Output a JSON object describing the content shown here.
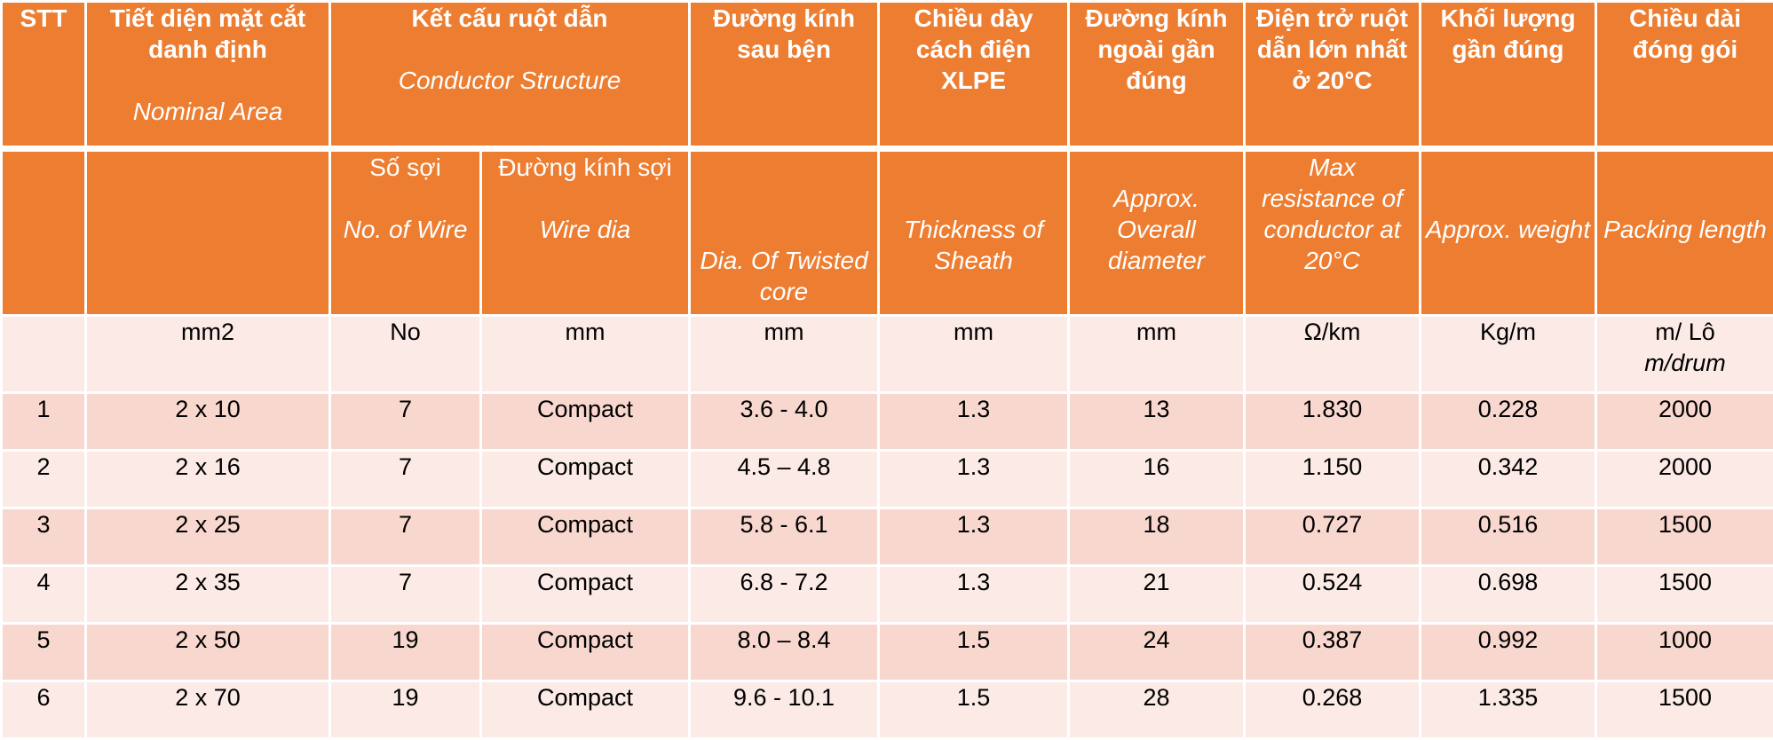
{
  "header": {
    "stt": "STT",
    "nominal_area_vi": "Tiết diện mặt cắt danh định",
    "nominal_area_en": "Nominal Area",
    "conductor_structure_vi": "Kết cấu ruột dẫn",
    "conductor_structure_en": "Conductor Structure",
    "twisted_dia_vi": "Đường kính sau bện",
    "sheath_vi": "Chiều dày cách điện XLPE",
    "overall_dia_vi": "Đường kính ngoài gần đúng",
    "resistance_vi": "Điện trở ruột dẫn lớn nhất ở 20°C",
    "weight_vi": "Khối lượng gần đúng",
    "packing_vi": "Chiều dài đóng gói"
  },
  "subheader": {
    "no_wire_vi": "Số sợi",
    "no_wire_en": "No. of Wire",
    "wire_dia_vi": "Đường kính sợi",
    "wire_dia_en": "Wire dia",
    "twisted_dia_en": "Dia. Of Twisted core",
    "sheath_en": "Thickness of Sheath",
    "overall_dia_en": "Approx. Overall diameter",
    "resistance_en": "Max resistance of conductor at 20°C",
    "weight_en": "Approx. weight",
    "packing_en": "Packing length"
  },
  "units": {
    "stt": "",
    "area": "mm2",
    "no_wire": "No",
    "wire_dia": "mm",
    "twisted_dia": "mm",
    "sheath": "mm",
    "overall_dia": "mm",
    "resistance": "Ω/km",
    "weight": "Kg/m",
    "packing_vi": "m/ Lô",
    "packing_en": "m/drum"
  },
  "rows": [
    {
      "stt": "1",
      "area": "2 x 10",
      "no_wire": "7",
      "wire_dia": "Compact",
      "twisted_dia": "3.6 - 4.0",
      "sheath": "1.3",
      "overall_dia": "13",
      "resistance": "1.830",
      "weight": "0.228",
      "packing": "2000"
    },
    {
      "stt": "2",
      "area": "2 x 16",
      "no_wire": "7",
      "wire_dia": "Compact",
      "twisted_dia": "4.5 – 4.8",
      "sheath": "1.3",
      "overall_dia": "16",
      "resistance": "1.150",
      "weight": "0.342",
      "packing": "2000"
    },
    {
      "stt": "3",
      "area": "2 x 25",
      "no_wire": "7",
      "wire_dia": "Compact",
      "twisted_dia": "5.8 - 6.1",
      "sheath": "1.3",
      "overall_dia": "18",
      "resistance": "0.727",
      "weight": "0.516",
      "packing": "1500"
    },
    {
      "stt": "4",
      "area": "2 x 35",
      "no_wire": "7",
      "wire_dia": "Compact",
      "twisted_dia": "6.8 - 7.2",
      "sheath": "1.3",
      "overall_dia": "21",
      "resistance": "0.524",
      "weight": "0.698",
      "packing": "1500"
    },
    {
      "stt": "5",
      "area": "2 x 50",
      "no_wire": "19",
      "wire_dia": "Compact",
      "twisted_dia": "8.0 – 8.4",
      "sheath": "1.5",
      "overall_dia": "24",
      "resistance": "0.387",
      "weight": "0.992",
      "packing": "1000"
    },
    {
      "stt": "6",
      "area": "2 x 70",
      "no_wire": "19",
      "wire_dia": "Compact",
      "twisted_dia": "9.6 - 10.1",
      "sheath": "1.5",
      "overall_dia": "28",
      "resistance": "0.268",
      "weight": "1.335",
      "packing": "1500"
    }
  ],
  "colors": {
    "header_bg": "#ED7D31",
    "row_dark": "#F8D7CE",
    "row_light": "#FBEAE6"
  }
}
